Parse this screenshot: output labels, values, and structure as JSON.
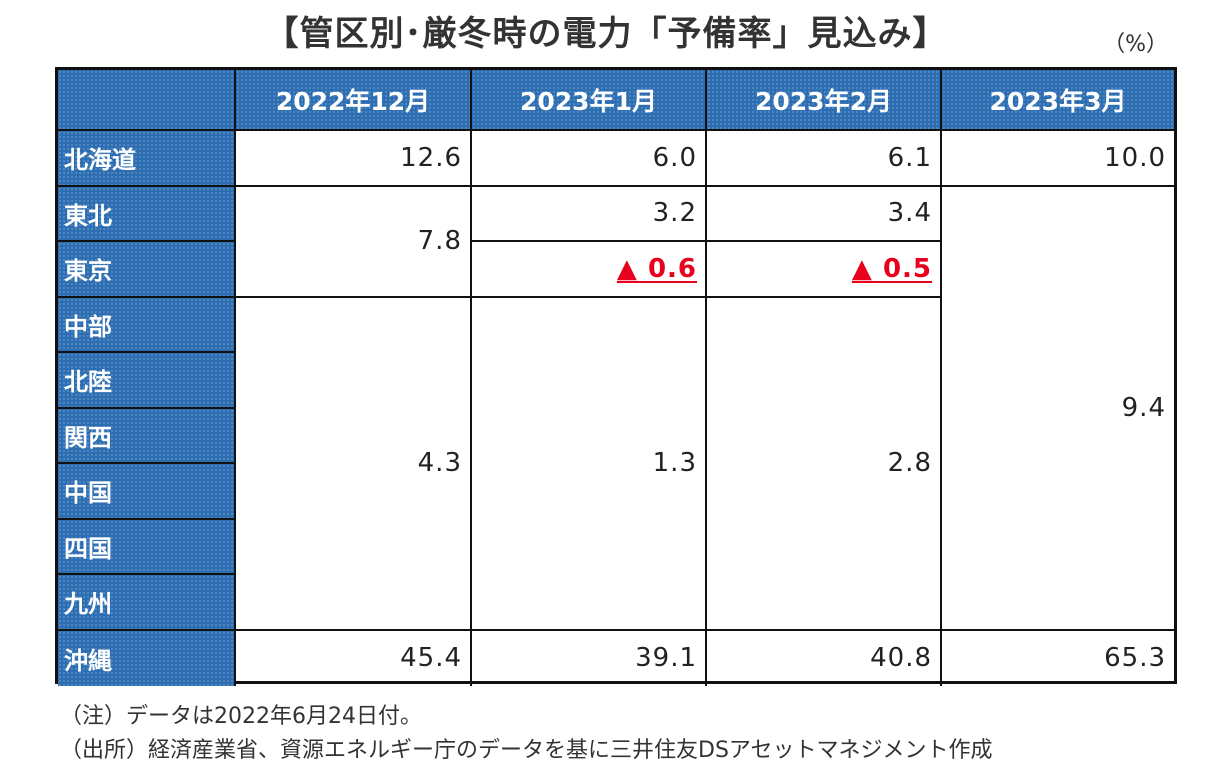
{
  "title": "【管区別･厳冬時の電力「予備率」見込み】",
  "unit": "（%）",
  "columns": [
    "2022年12月",
    "2023年1月",
    "2023年2月",
    "2023年3月"
  ],
  "regions": [
    "北海道",
    "東北",
    "東京",
    "中部",
    "北陸",
    "関西",
    "中国",
    "四国",
    "九州",
    "沖縄"
  ],
  "values": {
    "hokkaido": [
      "12.6",
      "6.0",
      "6.1",
      "10.0"
    ],
    "tohoku_tokyo_dec": "7.8",
    "tohoku_jan": "3.2",
    "tohoku_feb": "3.4",
    "tokyo_jan": "▲ 0.6",
    "tokyo_feb": "▲ 0.5",
    "east_to_kyushu_mar": "9.4",
    "chubu_to_kyushu": [
      "4.3",
      "1.3",
      "2.8"
    ],
    "okinawa": [
      "45.4",
      "39.1",
      "40.8",
      "65.3"
    ]
  },
  "colors": {
    "header_blue": "#2d6eb2",
    "negative_red": "#e8001c"
  },
  "notes": [
    "（注）データは2022年6月24日付。",
    "（出所）経済産業省、資源エネルギー庁のデータを基に三井住友DSアセットマネジメント作成"
  ]
}
